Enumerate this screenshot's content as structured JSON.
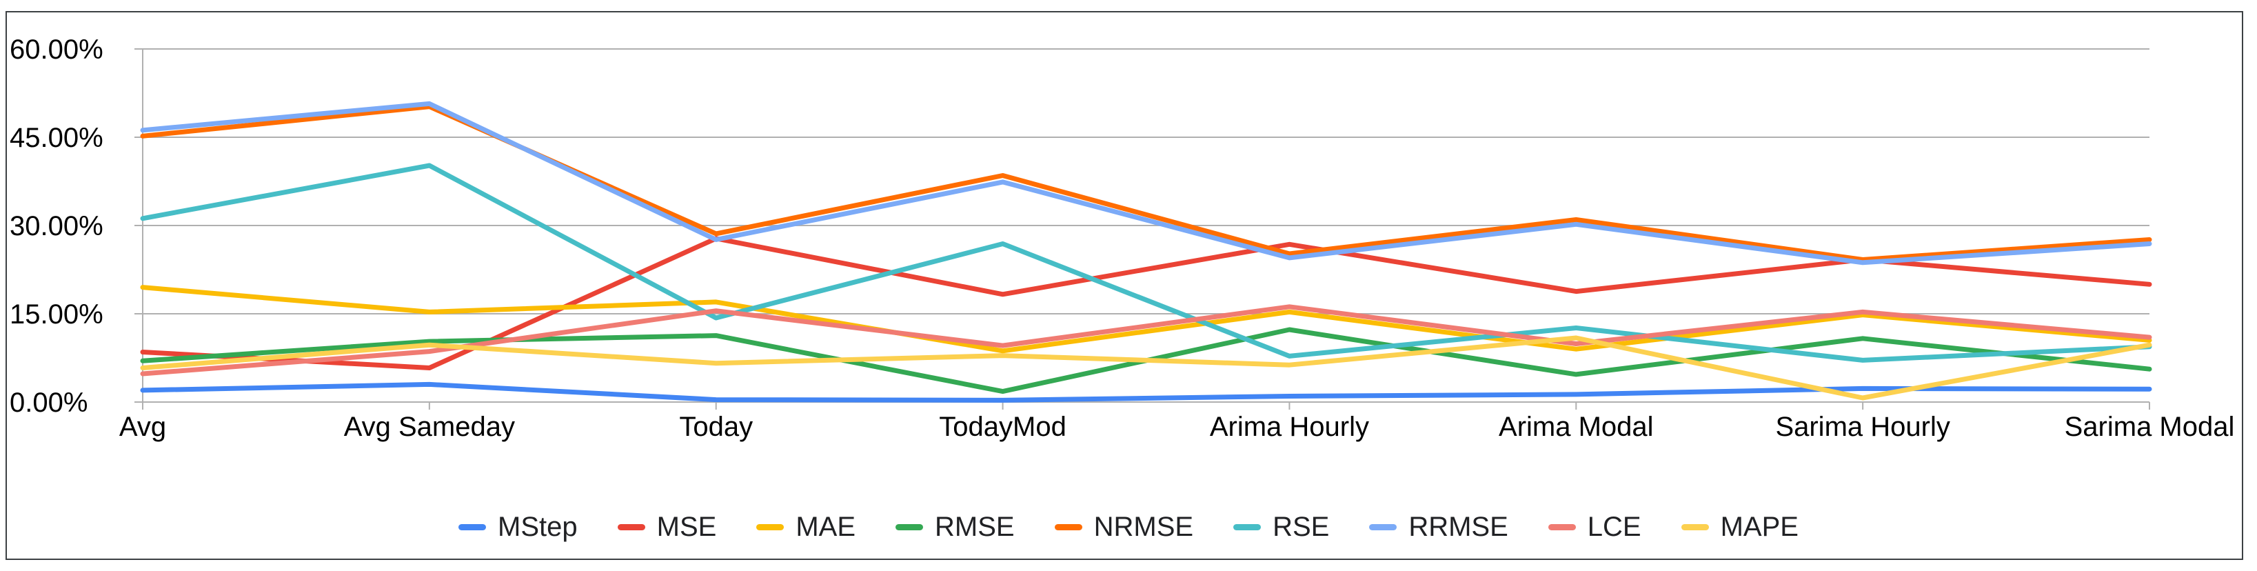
{
  "chart_data": {
    "type": "line",
    "title": "",
    "categories": [
      "Avg",
      "Avg Sameday",
      "Today",
      "TodayMod",
      "Arima Hourly",
      "Arima Modal",
      "Sarima Hourly",
      "Sarima Modal"
    ],
    "series": [
      {
        "name": "MStep",
        "color": "#4285F4",
        "values": [
          2.0,
          3.0,
          0.4,
          0.3,
          1.0,
          1.3,
          2.3,
          2.2
        ]
      },
      {
        "name": "MSE",
        "color": "#EA4335",
        "values": [
          8.5,
          5.8,
          27.8,
          18.3,
          26.8,
          18.8,
          24.2,
          20.0
        ]
      },
      {
        "name": "MAE",
        "color": "#FBBC04",
        "values": [
          19.5,
          15.3,
          17.0,
          8.7,
          15.3,
          9.0,
          14.8,
          10.5
        ]
      },
      {
        "name": "RMSE",
        "color": "#34A853",
        "values": [
          7.0,
          10.3,
          11.3,
          1.8,
          12.3,
          4.7,
          10.8,
          5.6
        ]
      },
      {
        "name": "NRMSE",
        "color": "#FF6D01",
        "values": [
          45.2,
          50.2,
          28.6,
          38.5,
          25.2,
          31.0,
          24.2,
          27.6
        ]
      },
      {
        "name": "RSE",
        "color": "#46BDC6",
        "values": [
          31.2,
          40.2,
          14.3,
          26.9,
          7.8,
          12.6,
          7.1,
          9.4
        ]
      },
      {
        "name": "RRMSE",
        "color": "#7BAAF7",
        "values": [
          46.2,
          50.7,
          27.6,
          37.4,
          24.5,
          30.2,
          23.7,
          26.9
        ]
      },
      {
        "name": "LCE",
        "color": "#F07B72",
        "values": [
          4.8,
          8.6,
          15.5,
          9.6,
          16.2,
          9.9,
          15.3,
          11.0
        ]
      },
      {
        "name": "MAPE",
        "color": "#FCD04F",
        "values": [
          5.8,
          9.7,
          6.6,
          7.9,
          6.3,
          10.9,
          0.7,
          9.7
        ]
      }
    ],
    "y_axis": {
      "min": 0,
      "max": 60,
      "step": 15,
      "tick_labels": [
        "0.00%",
        "15.00%",
        "30.00%",
        "45.00%",
        "60.00%"
      ]
    },
    "xlabel": "",
    "ylabel": "",
    "grid": true,
    "legend_position": "bottom",
    "style": {
      "grid_color": "#b0b0b0",
      "axis_color": "#b0b0b0",
      "tick_label_color": "#000000",
      "legend_text_color": "#202124",
      "frame_border_color": "#3c4043",
      "background_color": "#ffffff",
      "line_width": 7
    }
  }
}
